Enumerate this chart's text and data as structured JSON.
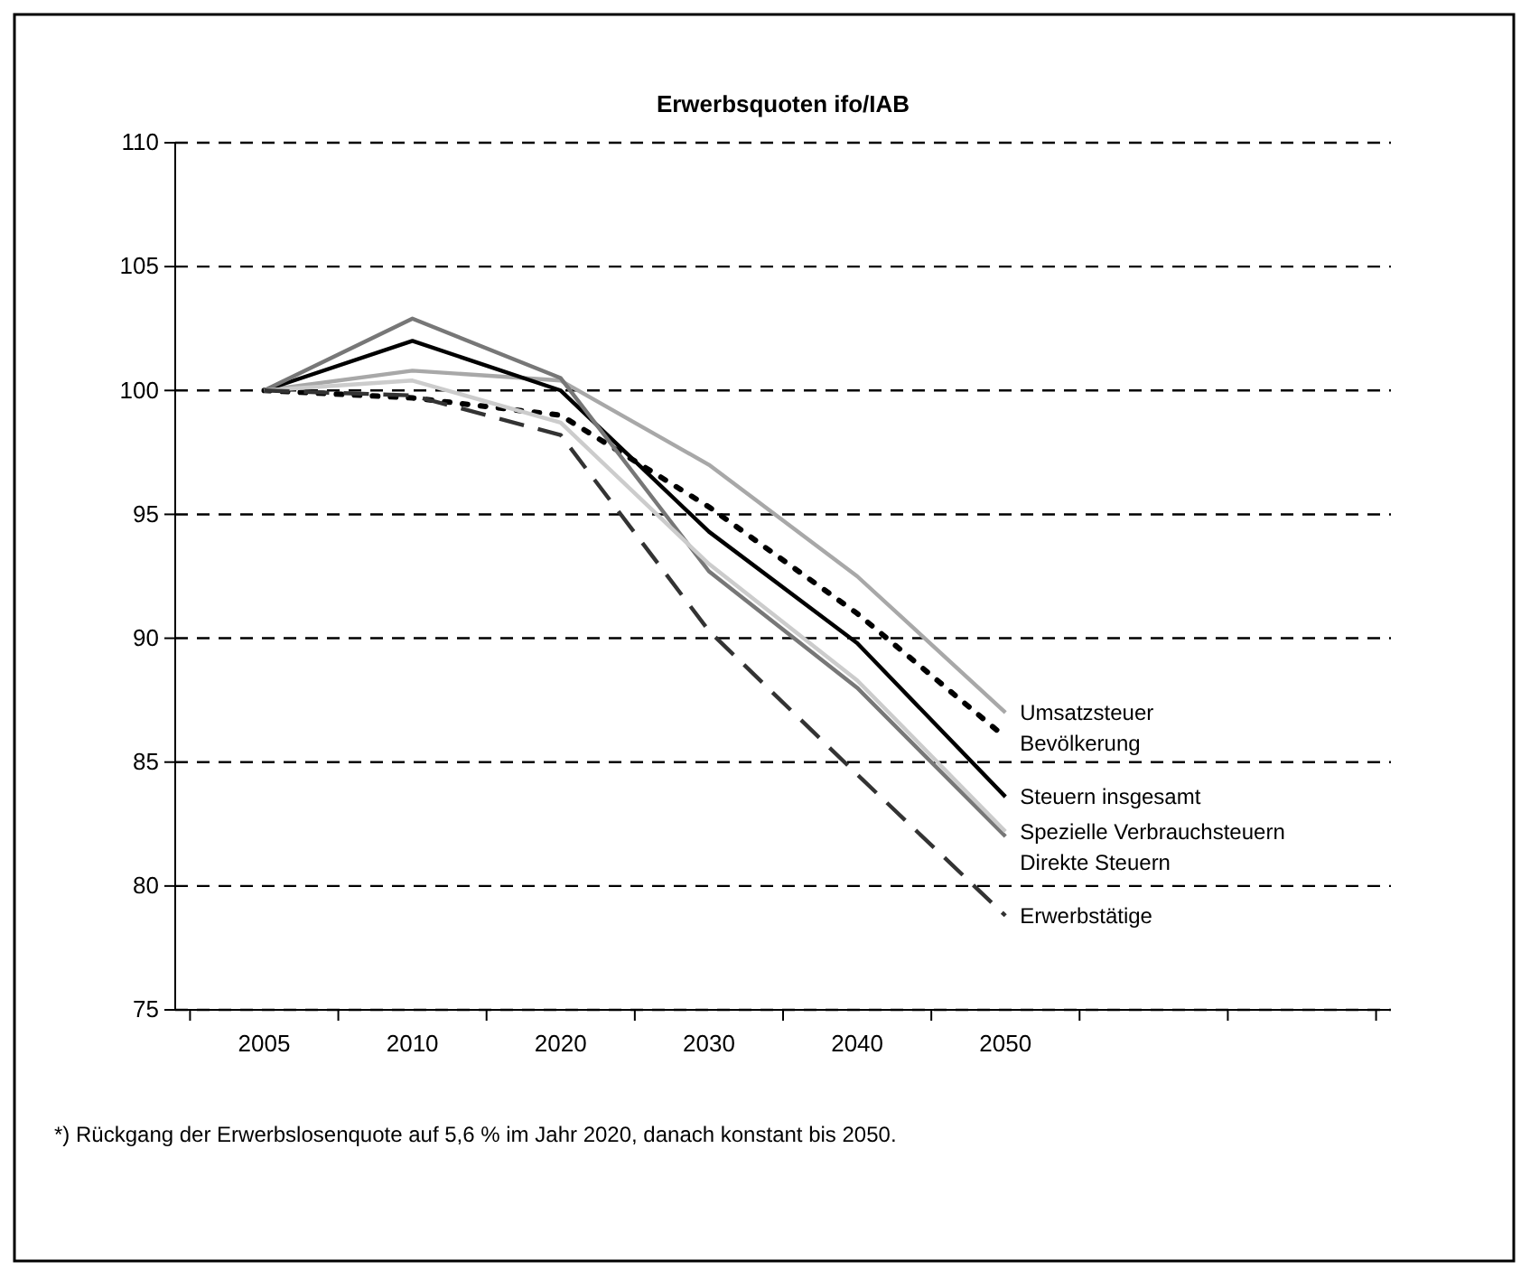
{
  "chart_data": {
    "type": "line",
    "title": "Erwerbsquoten ifo/IAB",
    "categories": [
      "2005",
      "2010",
      "2020",
      "2030",
      "2040",
      "2050",
      null,
      null
    ],
    "ylim": [
      75,
      110
    ],
    "yticks": [
      75,
      80,
      85,
      90,
      95,
      100,
      105,
      110
    ],
    "grid": "y",
    "marker": "none",
    "series": [
      {
        "name": "Umsatzsteuer",
        "color": "#a8a8a8",
        "line_style": "solid",
        "values": [
          100,
          100.8,
          100.4,
          97,
          92.5,
          87,
          null,
          null
        ]
      },
      {
        "name": "Bevölkerung",
        "color": "#000000",
        "line_style": "dotted",
        "values": [
          100,
          99.7,
          99.0,
          95.3,
          91,
          86,
          null,
          null
        ]
      },
      {
        "name": "Steuern insgesamt",
        "color": "#000000",
        "line_style": "solid",
        "values": [
          100,
          102,
          100,
          94.3,
          89.8,
          83.6,
          null,
          null
        ]
      },
      {
        "name": "Direkte Steuern",
        "color": "#777777",
        "line_style": "solid",
        "values": [
          100,
          102.9,
          100.5,
          92.7,
          88,
          82,
          null,
          null
        ]
      },
      {
        "name": "Spezielle Verbrauchsteuern",
        "color": "#cccccc",
        "line_style": "solid",
        "values": [
          100,
          100.4,
          98.7,
          93,
          88.3,
          82.2,
          null,
          null
        ]
      },
      {
        "name": "Erwerbstätige",
        "color": "#333333",
        "line_style": "dashed",
        "values": [
          100,
          99.8,
          98.2,
          90.3,
          84.5,
          78.8,
          null,
          null
        ]
      }
    ],
    "annotations": [
      "*) Rückgang der Erwerbslosenquote auf 5,6 % im Jahr 2020, danach konstant bis 2050."
    ]
  }
}
